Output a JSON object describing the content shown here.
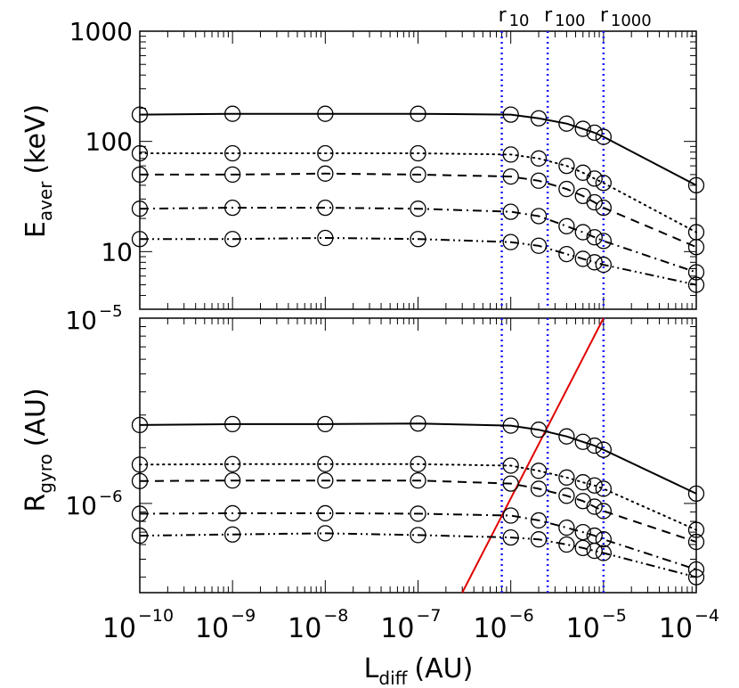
{
  "chart_data": [
    {
      "type": "line",
      "panel": "top",
      "ylabel": "E",
      "ylabel_sub": "aver",
      "ylabel_unit": "(keV)",
      "yscale": "log",
      "ylim": [
        3,
        1000
      ],
      "xscale": "log",
      "xlim": [
        1e-10,
        0.0001
      ],
      "y_ticks": [
        {
          "value": 10,
          "label": "10"
        },
        {
          "value": 100,
          "label": "100"
        },
        {
          "value": 1000,
          "label": "1000"
        }
      ],
      "series": [
        {
          "style": "solid",
          "x": [
            1e-10,
            1e-09,
            1e-08,
            1e-07,
            1e-06,
            2e-06,
            4e-06,
            6e-06,
            8e-06,
            1e-05,
            0.0001
          ],
          "y": [
            175,
            178,
            178,
            178,
            175,
            162,
            145,
            130,
            120,
            110,
            40
          ]
        },
        {
          "style": "dotted",
          "x": [
            1e-10,
            1e-09,
            1e-08,
            1e-07,
            1e-06,
            2e-06,
            4e-06,
            6e-06,
            8e-06,
            1e-05,
            0.0001
          ],
          "y": [
            78,
            78,
            78,
            78,
            76,
            70,
            60,
            52,
            46,
            42,
            15
          ]
        },
        {
          "style": "dashed",
          "x": [
            1e-10,
            1e-09,
            1e-08,
            1e-07,
            1e-06,
            2e-06,
            4e-06,
            6e-06,
            8e-06,
            1e-05,
            0.0001
          ],
          "y": [
            50,
            50,
            51,
            50,
            48,
            44,
            37,
            32,
            28,
            25,
            11
          ]
        },
        {
          "style": "dashdot",
          "x": [
            1e-10,
            1e-09,
            1e-08,
            1e-07,
            1e-06,
            2e-06,
            4e-06,
            6e-06,
            8e-06,
            1e-05,
            0.0001
          ],
          "y": [
            24.5,
            25,
            25,
            24.5,
            23,
            21,
            17,
            15,
            13.5,
            12.5,
            6.5
          ]
        },
        {
          "style": "dashdotdot",
          "x": [
            1e-10,
            1e-09,
            1e-08,
            1e-07,
            1e-06,
            2e-06,
            4e-06,
            6e-06,
            8e-06,
            1e-05,
            0.0001
          ],
          "y": [
            13,
            13,
            13.3,
            13,
            12.2,
            11.3,
            9.5,
            8.6,
            8,
            7.6,
            5
          ]
        }
      ],
      "vlines": [
        {
          "x": 8e-07,
          "label": "r",
          "sub": "10"
        },
        {
          "x": 2.5e-06,
          "label": "r",
          "sub": "100"
        },
        {
          "x": 1e-05,
          "label": "r",
          "sub": "1000"
        }
      ]
    },
    {
      "type": "line",
      "panel": "bottom",
      "ylabel": "R",
      "ylabel_sub": "gyro",
      "ylabel_unit": "(AU)",
      "yscale": "log",
      "ylim": [
        3.3e-07,
        1e-05
      ],
      "xscale": "log",
      "xlim": [
        1e-10,
        0.0001
      ],
      "xlabel": "L",
      "xlabel_sub": "diff",
      "xlabel_unit": "(AU)",
      "x_ticks": [
        {
          "value": 1e-10,
          "base": "10",
          "exp": "−10"
        },
        {
          "value": 1e-09,
          "base": "10",
          "exp": "−9"
        },
        {
          "value": 1e-08,
          "base": "10",
          "exp": "−8"
        },
        {
          "value": 1e-07,
          "base": "10",
          "exp": "−7"
        },
        {
          "value": 1e-06,
          "base": "10",
          "exp": "−6"
        },
        {
          "value": 1e-05,
          "base": "10",
          "exp": "−5"
        },
        {
          "value": 0.0001,
          "base": "10",
          "exp": "−4"
        }
      ],
      "y_ticks": [
        {
          "value": 1e-06,
          "base": "10",
          "exp": "−6"
        },
        {
          "value": 1e-05,
          "base": "10",
          "exp": "−5"
        }
      ],
      "series": [
        {
          "style": "solid",
          "x": [
            1e-10,
            1e-09,
            1e-08,
            1e-07,
            1e-06,
            2e-06,
            4e-06,
            6e-06,
            8e-06,
            1e-05,
            0.0001
          ],
          "y": [
            2.65e-06,
            2.68e-06,
            2.68e-06,
            2.7e-06,
            2.63e-06,
            2.5e-06,
            2.3e-06,
            2.15e-06,
            2.05e-06,
            1.95e-06,
            1.13e-06
          ]
        },
        {
          "style": "dotted",
          "x": [
            1e-10,
            1e-09,
            1e-08,
            1e-07,
            1e-06,
            2e-06,
            4e-06,
            6e-06,
            8e-06,
            1e-05,
            0.0001
          ],
          "y": [
            1.62e-06,
            1.63e-06,
            1.63e-06,
            1.63e-06,
            1.6e-06,
            1.5e-06,
            1.38e-06,
            1.3e-06,
            1.25e-06,
            1.2e-06,
            7.2e-07
          ]
        },
        {
          "style": "dashed",
          "x": [
            1e-10,
            1e-09,
            1e-08,
            1e-07,
            1e-06,
            2e-06,
            4e-06,
            6e-06,
            8e-06,
            1e-05,
            0.0001
          ],
          "y": [
            1.32e-06,
            1.33e-06,
            1.33e-06,
            1.33e-06,
            1.28e-06,
            1.2e-06,
            1.1e-06,
            1.03e-06,
            9.6e-07,
            9.1e-07,
            6.2e-07
          ]
        },
        {
          "style": "dashdot",
          "x": [
            1e-10,
            1e-09,
            1e-08,
            1e-07,
            1e-06,
            2e-06,
            4e-06,
            6e-06,
            8e-06,
            1e-05,
            0.0001
          ],
          "y": [
            8.8e-07,
            8.85e-07,
            8.85e-07,
            8.8e-07,
            8.6e-07,
            8.1e-07,
            7.4e-07,
            7e-07,
            6.7e-07,
            6.4e-07,
            4.4e-07
          ]
        },
        {
          "style": "dashdotdot",
          "x": [
            1e-10,
            1e-09,
            1e-08,
            1e-07,
            1e-06,
            2e-06,
            4e-06,
            6e-06,
            8e-06,
            1e-05,
            0.0001
          ],
          "y": [
            6.7e-07,
            6.8e-07,
            6.9e-07,
            6.75e-07,
            6.55e-07,
            6.4e-07,
            6e-07,
            5.75e-07,
            5.55e-07,
            5.4e-07,
            4e-07
          ]
        }
      ],
      "lines": [
        {
          "color": "#e00000",
          "x": [
            3e-07,
            1e-05
          ],
          "y": [
            3.3e-07,
            1e-05
          ]
        }
      ],
      "vlines": [
        {
          "x": 8e-07
        },
        {
          "x": 2.5e-06
        },
        {
          "x": 1e-05
        }
      ]
    }
  ],
  "colors": {
    "axes": "#000000",
    "vline": "#1a1aff",
    "diagonal": "#e00000"
  }
}
